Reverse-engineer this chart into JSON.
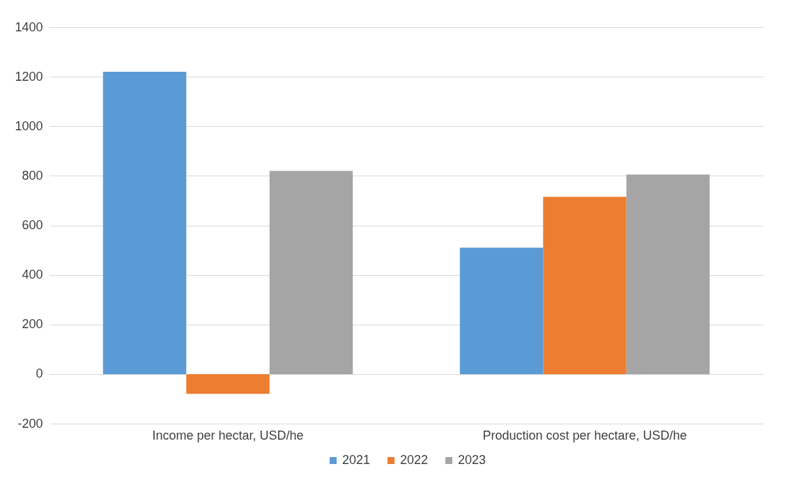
{
  "chart_data": {
    "type": "bar",
    "categories": [
      "Income per hectar, USD/he",
      "Production cost per hectare, USD/he"
    ],
    "series": [
      {
        "name": "2021",
        "color": "#5b9bd5",
        "values": [
          1220,
          510
        ]
      },
      {
        "name": "2022",
        "color": "#ed7d31",
        "values": [
          -80,
          715
        ]
      },
      {
        "name": "2023",
        "color": "#a5a5a5",
        "values": [
          820,
          805
        ]
      }
    ],
    "ylim": [
      -200,
      1400
    ],
    "yticks": [
      -200,
      0,
      200,
      400,
      600,
      800,
      1000,
      1200,
      1400
    ],
    "grid": "y",
    "legend": "bottom"
  }
}
